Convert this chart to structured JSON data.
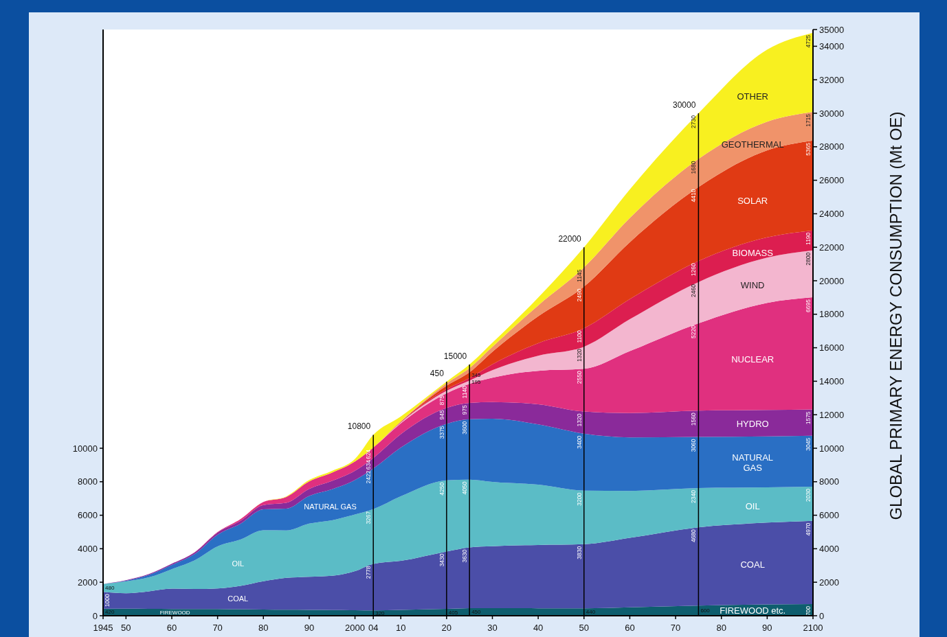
{
  "chart_data": {
    "type": "area",
    "stacked": true,
    "y2label": "GLOBAL PRIMARY ENERGY CONSUMPTION (Mt OE)",
    "x": [
      1945,
      1950,
      1955,
      1960,
      1965,
      1970,
      1975,
      1980,
      1985,
      1990,
      1995,
      2000,
      2004,
      2010,
      2020,
      2025,
      2030,
      2040,
      2050,
      2060,
      2075,
      2090,
      2100
    ],
    "xlim": [
      1945,
      2100
    ],
    "xticks": [
      1945,
      {
        "value": 1950,
        "label": "50"
      },
      {
        "value": 1960,
        "label": "60"
      },
      {
        "value": 1970,
        "label": "70"
      },
      {
        "value": 1980,
        "label": "80"
      },
      {
        "value": 1990,
        "label": "90"
      },
      2000,
      {
        "value": 2004,
        "label": "04"
      },
      {
        "value": 2010,
        "label": "10"
      },
      {
        "value": 2020,
        "label": "20"
      },
      {
        "value": 2030,
        "label": "30"
      },
      {
        "value": 2040,
        "label": "40"
      },
      {
        "value": 2050,
        "label": "50"
      },
      {
        "value": 2060,
        "label": "60"
      },
      {
        "value": 2070,
        "label": "70"
      },
      {
        "value": 2080,
        "label": "80"
      },
      {
        "value": 2090,
        "label": "90"
      },
      2100
    ],
    "ylim": [
      0,
      35000
    ],
    "yticks": [
      0,
      2000,
      4000,
      6000,
      8000,
      10000
    ],
    "y2lim": [
      0,
      35000
    ],
    "y2ticks": [
      0,
      2000,
      4000,
      6000,
      8000,
      10000,
      12000,
      14000,
      16000,
      18000,
      20000,
      22000,
      24000,
      26000,
      28000,
      30000,
      32000,
      34000,
      35000
    ],
    "grid": false,
    "series": [
      {
        "name": "FIREWOOD etc.",
        "color": "#0e5e6e",
        "values": [
          420,
          415,
          410,
          400,
          395,
          400,
          385,
          370,
          360,
          350,
          340,
          330,
          320,
          350,
          405,
          450,
          450,
          445,
          440,
          500,
          600,
          680,
          700
        ],
        "value_labels": [
          "420",
          null,
          null,
          null,
          null,
          null,
          null,
          null,
          null,
          null,
          null,
          null,
          "320",
          null,
          "405",
          "450",
          null,
          null,
          "440",
          null,
          "600",
          null,
          "700"
        ]
      },
      {
        "name": "COAL",
        "color": "#4b4ea8",
        "values": [
          1000,
          930,
          1050,
          1220,
          1200,
          1230,
          1400,
          1690,
          1900,
          1980,
          2050,
          2330,
          2778,
          2930,
          3430,
          3630,
          3700,
          3780,
          3830,
          4150,
          4680,
          4880,
          4970
        ],
        "value_labels": [
          "1000",
          null,
          null,
          null,
          null,
          null,
          null,
          null,
          null,
          null,
          null,
          null,
          "2778",
          null,
          "3430",
          "3630",
          null,
          null,
          "3830",
          null,
          "4680",
          null,
          "4970"
        ]
      },
      {
        "name": "OIL",
        "color": "#5bbcc6",
        "values": [
          480,
          700,
          830,
          1160,
          1710,
          2510,
          2760,
          3040,
          2830,
          3170,
          3310,
          3390,
          3267,
          3850,
          4250,
          4050,
          3840,
          3600,
          3200,
          2800,
          2340,
          2100,
          2030
        ],
        "value_labels": [
          "480",
          null,
          null,
          null,
          null,
          null,
          null,
          null,
          null,
          null,
          null,
          null,
          "3267",
          null,
          "4250",
          "4050",
          null,
          null,
          "3200",
          null,
          "2340",
          null,
          "2030"
        ]
      },
      {
        "name": "NATURAL GAS",
        "color": "#2a6fc4",
        "values": [
          0,
          50,
          150,
          250,
          380,
          700,
          950,
          1250,
          1300,
          1650,
          1850,
          2050,
          2422,
          2910,
          3375,
          3600,
          3770,
          3600,
          3400,
          3200,
          3060,
          3050,
          3045
        ],
        "value_labels": [
          null,
          null,
          null,
          null,
          null,
          null,
          null,
          null,
          null,
          null,
          null,
          null,
          "2422",
          null,
          "3375",
          "3600",
          null,
          null,
          "3400",
          null,
          "3060",
          null,
          "3045"
        ]
      },
      {
        "name": "HYDRO",
        "color": "#8a2a9a",
        "values": [
          0,
          30,
          50,
          70,
          100,
          130,
          170,
          260,
          350,
          420,
          500,
          560,
          634,
          800,
          945,
          975,
          1000,
          1200,
          1320,
          1450,
          1560,
          1570,
          1575
        ],
        "value_labels": [
          null,
          null,
          null,
          null,
          null,
          null,
          null,
          null,
          null,
          null,
          null,
          null,
          "634",
          null,
          "945",
          "975",
          null,
          null,
          "1320",
          null,
          "1560",
          null,
          "1575"
        ]
      },
      {
        "name": "NUCLEAR",
        "color": "#e0307f",
        "values": [
          0,
          0,
          0,
          0,
          10,
          30,
          100,
          180,
          350,
          450,
          500,
          550,
          624,
          650,
          875,
          1140,
          1450,
          2000,
          2550,
          3700,
          5220,
          6400,
          6695
        ],
        "value_labels": [
          null,
          null,
          null,
          null,
          null,
          null,
          null,
          null,
          null,
          null,
          null,
          null,
          "624",
          null,
          "875",
          "1140",
          null,
          null,
          "2550",
          null,
          "5220",
          null,
          "6695"
        ]
      },
      {
        "name": "WIND",
        "color": "#f3b6cf",
        "values": [
          0,
          0,
          0,
          0,
          0,
          0,
          0,
          0,
          0,
          0,
          0,
          0,
          0,
          50,
          150,
          195,
          450,
          900,
          1320,
          1900,
          2460,
          2700,
          2800
        ],
        "value_labels": [
          null,
          null,
          null,
          null,
          null,
          null,
          null,
          null,
          null,
          null,
          null,
          null,
          null,
          null,
          null,
          "195",
          null,
          null,
          "1320",
          null,
          "2460",
          null,
          "2800"
        ]
      },
      {
        "name": "BIOMASS",
        "color": "#dc1e50",
        "values": [
          0,
          0,
          0,
          0,
          0,
          0,
          0,
          0,
          0,
          0,
          0,
          0,
          0,
          30,
          100,
          150,
          350,
          750,
          1100,
          1200,
          1260,
          1210,
          1190
        ],
        "value_labels": [
          null,
          null,
          null,
          null,
          null,
          null,
          null,
          null,
          null,
          null,
          null,
          null,
          null,
          null,
          null,
          null,
          null,
          null,
          "1100",
          null,
          "1260",
          null,
          "1190"
        ]
      },
      {
        "name": "SOLAR",
        "color": "#e03a14",
        "values": [
          0,
          0,
          0,
          0,
          0,
          0,
          0,
          0,
          0,
          0,
          0,
          0,
          0,
          20,
          200,
          345,
          750,
          1600,
          2490,
          3400,
          4410,
          5200,
          5365
        ],
        "value_labels": [
          null,
          null,
          null,
          null,
          null,
          null,
          null,
          null,
          null,
          null,
          null,
          null,
          null,
          null,
          null,
          "345",
          null,
          null,
          "2490",
          null,
          "4410",
          null,
          "5365"
        ]
      },
      {
        "name": "GEOTHERMAL",
        "color": "#f0936a",
        "values": [
          0,
          0,
          0,
          0,
          0,
          0,
          0,
          0,
          0,
          0,
          0,
          0,
          0,
          10,
          150,
          250,
          300,
          650,
          1145,
          1450,
          1680,
          1710,
          1715
        ],
        "value_labels": [
          null,
          null,
          null,
          null,
          null,
          null,
          null,
          null,
          null,
          null,
          null,
          null,
          null,
          null,
          null,
          null,
          null,
          null,
          "1145",
          null,
          "1680",
          null,
          "1715"
        ]
      },
      {
        "name": "OTHER",
        "color": "#f8f020",
        "values": [
          0,
          0,
          0,
          0,
          0,
          0,
          0,
          0,
          30,
          80,
          100,
          150,
          755,
          300,
          100,
          215,
          240,
          475,
          1205,
          1700,
          2730,
          4300,
          4725
        ],
        "value_labels": [
          null,
          null,
          null,
          null,
          null,
          null,
          null,
          null,
          null,
          null,
          null,
          null,
          null,
          null,
          null,
          null,
          null,
          null,
          null,
          null,
          "2730",
          null,
          "4725"
        ]
      }
    ],
    "ref_lines": [
      {
        "axis": "x",
        "value": 2004,
        "color": "#000000"
      },
      {
        "axis": "x",
        "value": 2020,
        "color": "#000000"
      },
      {
        "axis": "x",
        "value": 2025,
        "color": "#000000"
      },
      {
        "axis": "x",
        "value": 2050,
        "color": "#000000"
      },
      {
        "axis": "x",
        "value": 2075,
        "color": "#000000"
      }
    ],
    "annotations": [
      "FIREWOOD",
      {
        "text": "10800",
        "x": 2004,
        "y": 10800
      },
      {
        "text": "450",
        "x": 2020,
        "y": 13980
      },
      {
        "text": "15000",
        "x": 2025,
        "y": 15000
      },
      {
        "text": "22000",
        "x": 2050,
        "y": 22000
      },
      {
        "text": "30000",
        "x": 2075,
        "y": 30000
      }
    ]
  }
}
